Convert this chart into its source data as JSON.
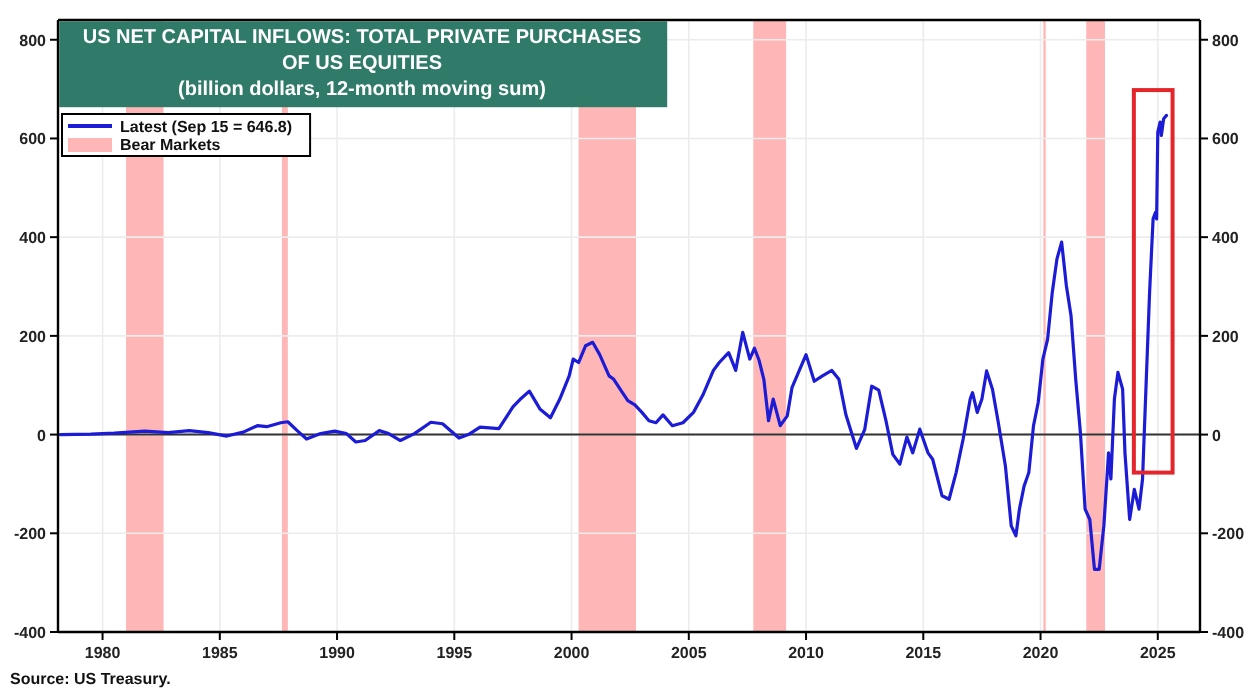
{
  "chart_data": {
    "type": "line",
    "title": "US NET CAPITAL INFLOWS: TOTAL PRIVATE PURCHASES OF US EQUITIES",
    "subtitle": "(billion dollars, 12-month moving sum)",
    "x": [
      1978.2,
      1979.5,
      1980.5,
      1981.8,
      1982.8,
      1983.7,
      1984.5,
      1985.3,
      1986.0,
      1986.6,
      1987.0,
      1987.6,
      1987.9,
      1988.3,
      1988.7,
      1989.3,
      1989.9,
      1990.4,
      1990.8,
      1991.2,
      1991.8,
      1992.2,
      1992.7,
      1993.3,
      1994.0,
      1994.5,
      1995.2,
      1995.6,
      1996.1,
      1996.9,
      1997.5,
      1997.8,
      1998.2,
      1998.65,
      1999.1,
      1999.5,
      1999.9,
      2000.07,
      2000.3,
      2000.6,
      2000.9,
      2001.2,
      2001.6,
      2001.8,
      2002.1,
      2002.4,
      2002.7,
      2003.0,
      2003.3,
      2003.6,
      2003.9,
      2004.3,
      2004.75,
      2005.2,
      2005.6,
      2006.05,
      2006.3,
      2006.7,
      2007.0,
      2007.3,
      2007.6,
      2007.8,
      2008.0,
      2008.2,
      2008.4,
      2008.6,
      2008.9,
      2009.2,
      2009.4,
      2010.0,
      2010.35,
      2010.7,
      2011.1,
      2011.4,
      2011.7,
      2012.15,
      2012.5,
      2012.8,
      2013.1,
      2013.4,
      2013.7,
      2014.0,
      2014.3,
      2014.55,
      2014.85,
      2015.2,
      2015.4,
      2015.8,
      2016.1,
      2016.4,
      2016.7,
      2017.0,
      2017.1,
      2017.3,
      2017.5,
      2017.7,
      2017.95,
      2018.2,
      2018.5,
      2018.75,
      2018.95,
      2019.1,
      2019.3,
      2019.5,
      2019.7,
      2019.9,
      2020.1,
      2020.3,
      2020.5,
      2020.7,
      2020.9,
      2021.1,
      2021.3,
      2021.5,
      2021.7,
      2021.9,
      2022.1,
      2022.3,
      2022.5,
      2022.7,
      2022.9,
      2023.0,
      2023.15,
      2023.3,
      2023.5,
      2023.6,
      2023.8,
      2024.0,
      2024.2,
      2024.35,
      2024.5,
      2024.65,
      2024.8,
      2024.9,
      2024.95,
      2025.0,
      2025.1,
      2025.15,
      2025.25,
      2025.37
    ],
    "series": [
      {
        "name": "Latest (Sep 15 = 646.8)",
        "color": "#1c1cd6",
        "values": [
          0,
          1,
          3,
          7,
          4,
          8,
          4,
          -3,
          5,
          18,
          16,
          24,
          26,
          8,
          -9,
          2,
          7,
          2,
          -15,
          -12,
          8,
          2,
          -12,
          2,
          25,
          22,
          -7,
          0,
          15,
          12,
          56,
          71,
          88,
          52,
          34,
          72,
          119,
          153,
          146,
          180,
          187,
          162,
          119,
          112,
          90,
          69,
          60,
          45,
          28,
          24,
          40,
          18,
          24,
          45,
          80,
          130,
          146,
          166,
          130,
          207,
          153,
          175,
          150,
          112,
          28,
          72,
          18,
          38,
          95,
          162,
          108,
          119,
          130,
          112,
          40,
          -28,
          10,
          98,
          90,
          30,
          -40,
          -60,
          -5,
          -37,
          11,
          -37,
          -50,
          -124,
          -131,
          -77,
          -9,
          72,
          85,
          45,
          72,
          129,
          92,
          24,
          -63,
          -185,
          -205,
          -151,
          -104,
          -77,
          18,
          65,
          153,
          193,
          288,
          356,
          390,
          302,
          241,
          112,
          4,
          -151,
          -172,
          -273,
          -273,
          -185,
          -37,
          -90,
          72,
          126,
          92,
          -37,
          -172,
          -111,
          -151,
          -90,
          100,
          288,
          437,
          450,
          437,
          613,
          633,
          606,
          640,
          646.8
        ]
      }
    ],
    "xlim": [
      1978.1,
      2026.8
    ],
    "xticks": [
      1980,
      1985,
      1990,
      1995,
      2000,
      2005,
      2010,
      2015,
      2020,
      2025
    ],
    "ylim": [
      -400,
      840
    ],
    "yticks": [
      -400,
      -200,
      0,
      200,
      400,
      600,
      800
    ],
    "y2lim": [
      -400,
      840
    ],
    "y2ticks": [
      -400,
      -200,
      0,
      200,
      400,
      600,
      800
    ],
    "grid": true,
    "legend": "top left",
    "bands": [
      {
        "axis": "x",
        "from": 1981.0,
        "to": 1982.6,
        "label": "Bear Markets",
        "color": "#ffb6b6"
      },
      {
        "axis": "x",
        "from": 1987.65,
        "to": 1987.9,
        "color": "#ffb6b6"
      },
      {
        "axis": "x",
        "from": 2000.3,
        "to": 2002.75,
        "color": "#ffb6b6"
      },
      {
        "axis": "x",
        "from": 2007.75,
        "to": 2009.15,
        "color": "#ffb6b6"
      },
      {
        "axis": "x",
        "from": 2020.12,
        "to": 2020.22,
        "color": "#ffb6b6"
      },
      {
        "axis": "x",
        "from": 2021.95,
        "to": 2022.75,
        "color": "#ffb6b6"
      }
    ],
    "ref_lines": [
      {
        "axis": "y",
        "value": 0,
        "color": "#333333"
      }
    ],
    "annotations": [
      "Source: US Treasury."
    ]
  }
}
